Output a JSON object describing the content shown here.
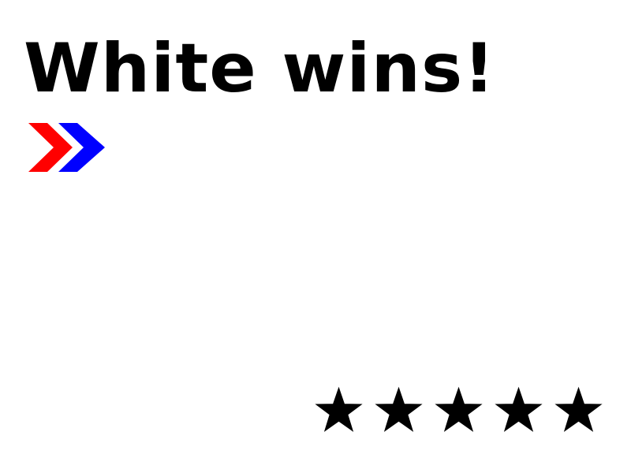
{
  "result": {
    "title": "White wins!"
  },
  "turn_indicator": {
    "colors": [
      "#ff0000",
      "#0000ff"
    ],
    "icon": "chevron-right-double-icon"
  },
  "rating": {
    "stars_filled": 5,
    "stars_total": 5,
    "color": "#000000",
    "icon": "star-icon"
  }
}
